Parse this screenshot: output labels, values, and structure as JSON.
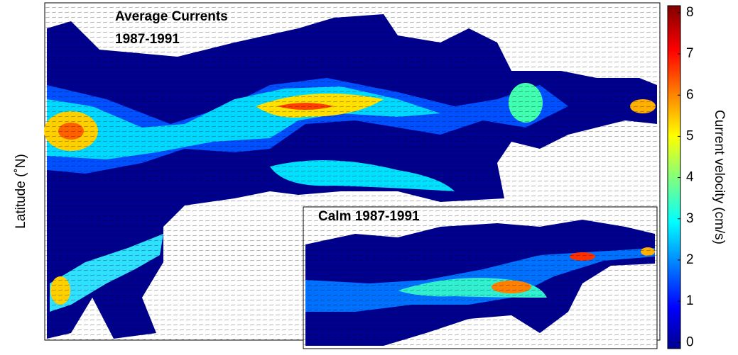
{
  "chart_data": {
    "type": "map",
    "title": "Average Currents",
    "subtitle": "1987-1991",
    "inset_title": "Calm 1987-1991",
    "ylabel": "Latitude (˚N)",
    "colorbar": {
      "label": "Current velocity (cm/s)",
      "lim": [
        -0.15,
        8.17
      ],
      "ticks": [
        0,
        1,
        2,
        3,
        4,
        5,
        6,
        7,
        8
      ]
    }
  }
}
